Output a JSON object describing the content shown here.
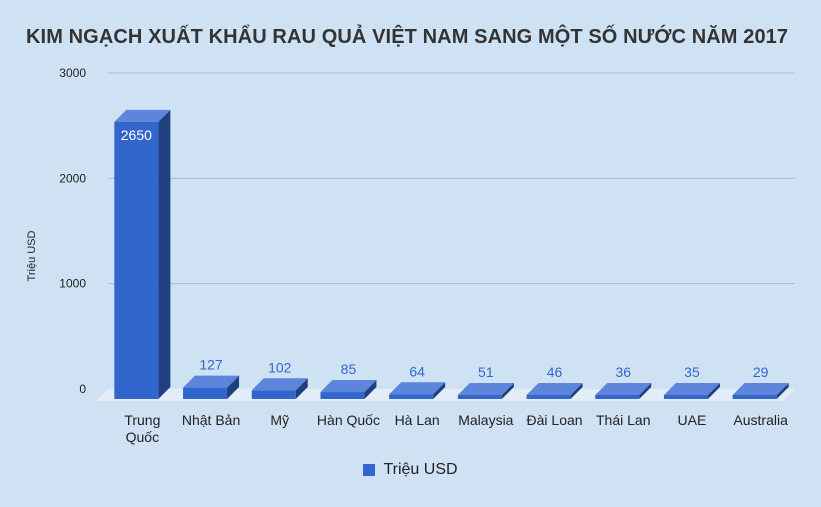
{
  "colors": {
    "background": "#cfe2f3",
    "bar_front": "#3366cc",
    "bar_top": "#5c85db",
    "bar_side": "#1f3f7f",
    "floor": "#e3edf7",
    "grid": "#a9bccf",
    "value_label_inside": "#ffffff",
    "value_label_outside": "#3366cc"
  },
  "chart_data": {
    "type": "bar",
    "title": "KIM NGẠCH XUẤT KHẨU RAU QUẢ VIỆT NAM SANG MỘT SỐ NƯỚC NĂM 2017",
    "xlabel": "",
    "ylabel": "Triệu USD",
    "ylim": [
      0,
      3000
    ],
    "yticks": [
      "0",
      "1000",
      "2000",
      "3000"
    ],
    "categories": [
      "Trung Quốc",
      "Nhật Bản",
      "Mỹ",
      "Hàn Quốc",
      "Hà Lan",
      "Malaysia",
      "Đài Loan",
      "Thái Lan",
      "UAE",
      "Australia"
    ],
    "series": [
      {
        "name": "Triệu USD",
        "values": [
          2650,
          127,
          102,
          85,
          64,
          51,
          46,
          36,
          35,
          29
        ],
        "labels": [
          "2650",
          "127",
          "102",
          "85",
          "64",
          "51",
          "46",
          "36",
          "35",
          "29"
        ]
      }
    ],
    "grid": true,
    "legend": "bottom"
  }
}
